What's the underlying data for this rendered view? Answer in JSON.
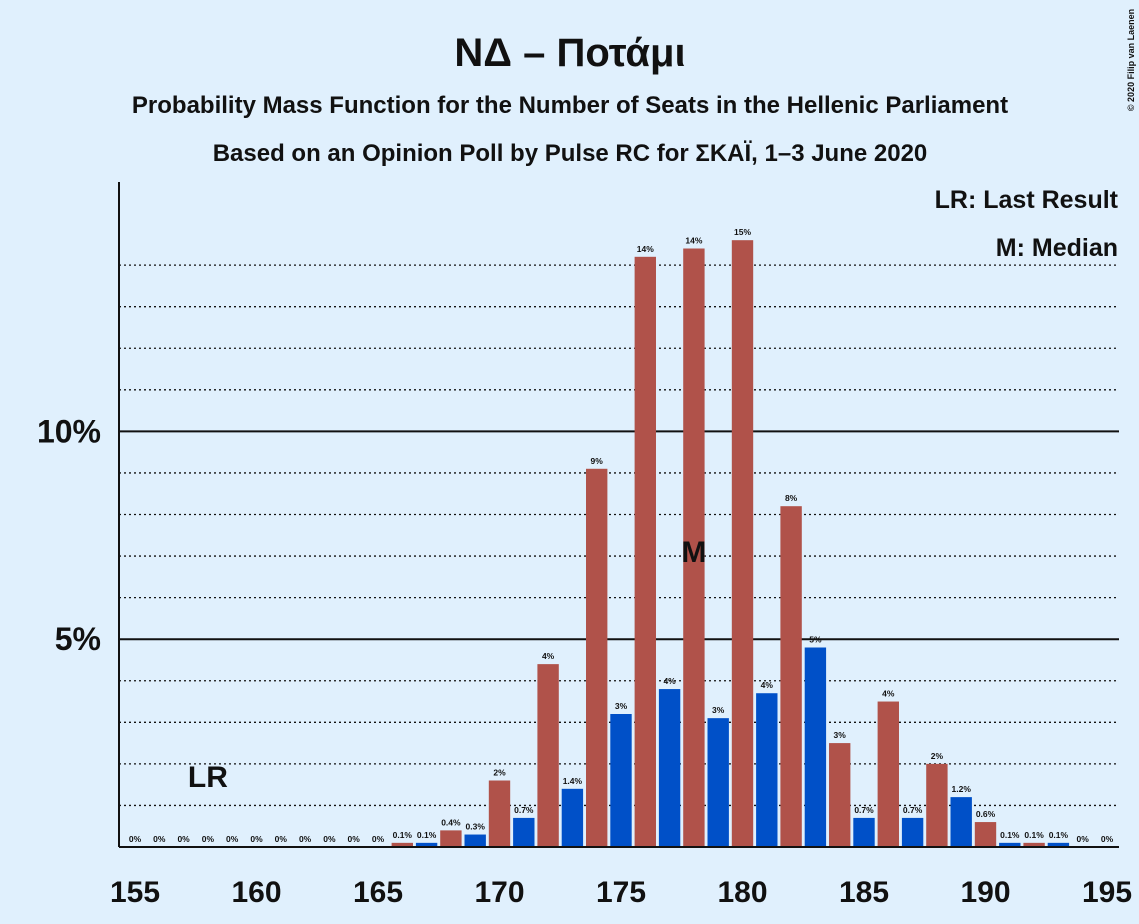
{
  "chart_data": {
    "type": "bar",
    "title": "ΝΔ – Ποτάμι",
    "subtitle": "Probability Mass Function for the Number of Seats in the Hellenic Parliament",
    "subtitle2": "Based on an Opinion Poll by Pulse RC for ΣΚΑΪ, 1–3 June 2020",
    "copyright": "© 2020 Filip van Laenen",
    "legend": [
      "LR: Last Result",
      "M: Median"
    ],
    "x": [
      155,
      156,
      157,
      158,
      159,
      160,
      161,
      162,
      163,
      164,
      165,
      166,
      167,
      168,
      169,
      170,
      171,
      172,
      173,
      174,
      175,
      176,
      177,
      178,
      179,
      180,
      181,
      182,
      183,
      184,
      185,
      186,
      187,
      188,
      189,
      190,
      191,
      192,
      193,
      194,
      195
    ],
    "values": [
      0,
      0,
      0,
      0,
      0,
      0,
      0,
      0,
      0,
      0,
      0,
      0.1,
      0.1,
      0.4,
      0.3,
      1.6,
      0.7,
      4.4,
      1.4,
      9.1,
      3.2,
      14.2,
      3.8,
      14.4,
      3.1,
      14.6,
      3.7,
      8.2,
      4.8,
      2.5,
      0.7,
      3.5,
      0.7,
      2.0,
      1.2,
      0.6,
      0.1,
      0.1,
      0.1,
      0,
      0
    ],
    "value_labels": [
      "0%",
      "0%",
      "0%",
      "0%",
      "0%",
      "0%",
      "0%",
      "0%",
      "0%",
      "0%",
      "0%",
      "0.1%",
      "0.1%",
      "0.4%",
      "0.3%",
      "2%",
      "0.7%",
      "4%",
      "1.4%",
      "9%",
      "3%",
      "14%",
      "4%",
      "14%",
      "3%",
      "15%",
      "4%",
      "8%",
      "5%",
      "3%",
      "0.7%",
      "4%",
      "0.7%",
      "2%",
      "1.2%",
      "0.6%",
      "0.1%",
      "0.1%",
      "0.1%",
      "0%",
      "0%"
    ],
    "bar_colors": [
      "#0050c8",
      "#b0524a"
    ],
    "last_result": {
      "x": 158,
      "label": "LR"
    },
    "median": {
      "x": 178,
      "label": "M"
    },
    "xlim": [
      155,
      195
    ],
    "xticks": [
      155,
      160,
      165,
      170,
      175,
      180,
      185,
      190,
      195
    ],
    "ylim": [
      0,
      16
    ],
    "yticks": [
      {
        "value": 5,
        "label": "5%"
      },
      {
        "value": 10,
        "label": "10%"
      }
    ],
    "minor_yticks": [
      1,
      2,
      3,
      4,
      6,
      7,
      8,
      9,
      11,
      12,
      13,
      14
    ]
  }
}
